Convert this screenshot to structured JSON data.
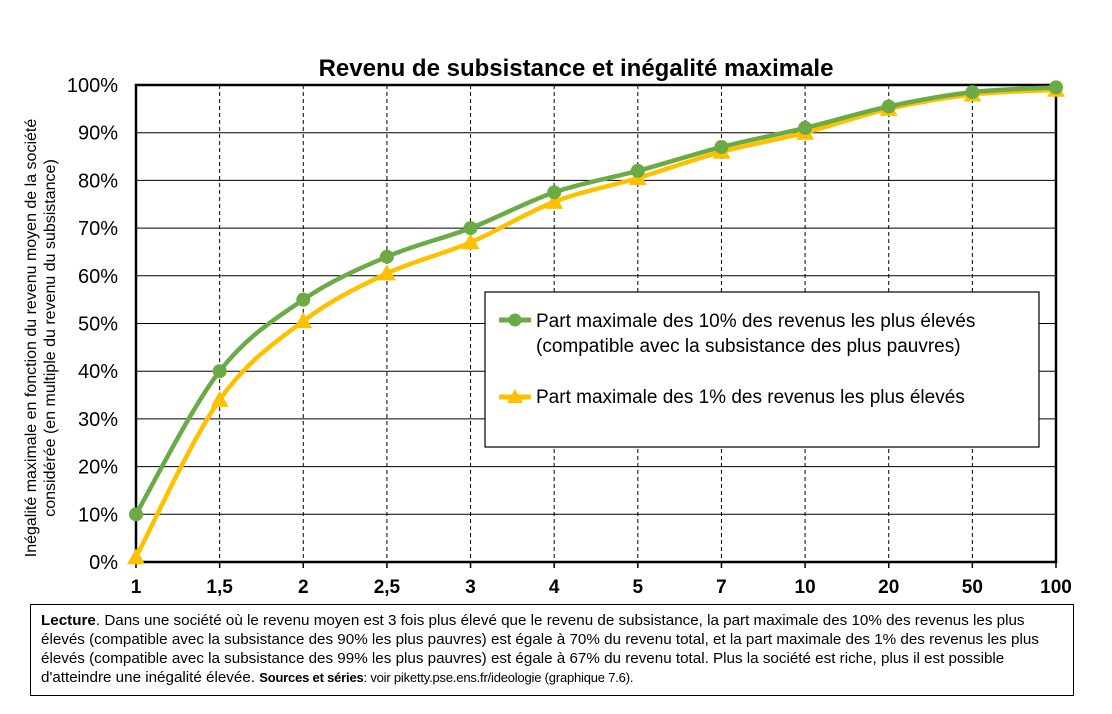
{
  "chart_data": {
    "type": "line",
    "title": "Revenu de subsistance et inégalité maximale",
    "ylabel_line1": "Inégalité maximale en fonction du revenu moyen de la société",
    "ylabel_line2": "considérée (en multiple du revenu du subsistance)",
    "categories": [
      "1",
      "1,5",
      "2",
      "2,5",
      "3",
      "4",
      "5",
      "7",
      "10",
      "20",
      "50",
      "100"
    ],
    "ylim": [
      0,
      100
    ],
    "yticks": [
      "0%",
      "10%",
      "20%",
      "30%",
      "40%",
      "50%",
      "60%",
      "70%",
      "80%",
      "90%",
      "100%"
    ],
    "grid": true,
    "legend_position": "center-right",
    "series": [
      {
        "name": "Part maximale des 10% des revenus les plus élevés",
        "name_line2": "(compatible avec la subsistance des plus pauvres)",
        "marker": "circle",
        "color": "#6AAB46",
        "values": [
          10,
          40,
          55,
          64,
          70,
          77.5,
          82,
          87,
          91,
          95.5,
          98.5,
          99.5
        ]
      },
      {
        "name": "Part maximale des 1% des revenus les plus élevés",
        "marker": "triangle",
        "color": "#FFC000",
        "values": [
          1,
          34,
          50.5,
          60.5,
          67,
          75.5,
          80.5,
          86,
          90,
          95,
          98,
          99
        ]
      }
    ]
  },
  "note": {
    "lecture_label": "Lecture",
    "lecture_text": ". Dans une société où le revenu moyen est 3 fois plus élevé que le revenu de subsistance, la part maximale des 10% des revenus les plus élevés (compatible avec la subsistance des 90% les plus pauvres) est égale à 70% du revenu total, et la part maximale des 1% des revenus les plus élevés (compatible avec la subsistance des 99% les plus pauvres) est égale à 67% du revenu total. Plus la société est riche, plus il est possible d'atteindre une inégalité élevée.",
    "sources_label": "Sources et séries",
    "sources_text": ": voir piketty.pse.ens.fr/ideologie (graphique 7.6)."
  }
}
